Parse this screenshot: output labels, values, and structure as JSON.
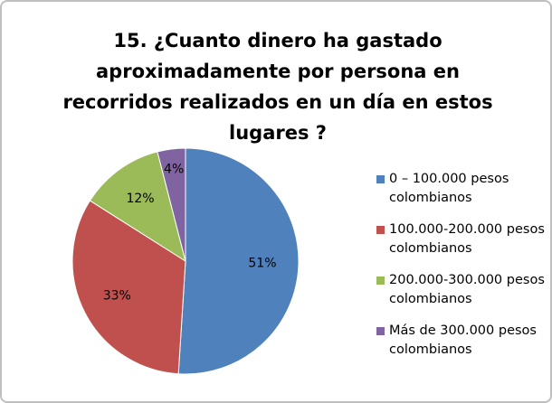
{
  "chart_data": {
    "type": "pie",
    "title": "15. ¿Cuanto dinero ha gastado aproximadamente por persona en recorridos realizados en un día en estos lugares ?",
    "categories": [
      "0 – 100.000 pesos colombianos",
      "100.000-200.000 pesos colombianos",
      "200.000-300.000 pesos colombianos",
      "Más de 300.000 pesos colombianos"
    ],
    "values": [
      51,
      33,
      12,
      4
    ],
    "value_labels": [
      "51%",
      "33%",
      "12%",
      "4%"
    ],
    "colors": [
      "#4f81bd",
      "#c0504d",
      "#9bbb59",
      "#8064a2"
    ],
    "legend": "right"
  }
}
